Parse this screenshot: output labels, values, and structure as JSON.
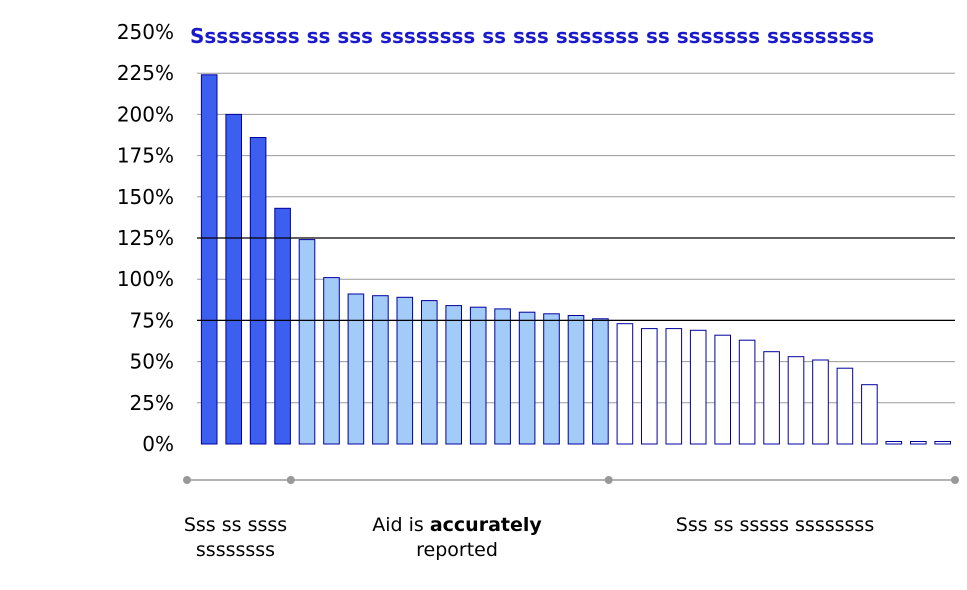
{
  "chart_data": {
    "type": "bar",
    "title": "Sssssssss ss sss ssssssss ss sss sssssss ss sssssss sssssssss",
    "xlabel": "",
    "ylabel": "",
    "ylim": [
      0,
      250
    ],
    "y_tick_labels": [
      "0%",
      "25%",
      "50%",
      "75%",
      "100%",
      "125%",
      "150%",
      "175%",
      "200%",
      "225%",
      "250%"
    ],
    "y_tick_values": [
      0,
      25,
      50,
      75,
      100,
      125,
      150,
      175,
      200,
      225,
      250
    ],
    "reference_lines": [
      75,
      125
    ],
    "grid": true,
    "values": [
      224,
      200,
      186,
      143,
      124,
      101,
      91,
      90,
      89,
      87,
      84,
      83,
      82,
      80,
      79,
      78,
      76,
      73,
      70,
      70,
      69,
      66,
      63,
      56,
      53,
      51,
      46,
      36,
      1.5,
      1.5,
      1.5
    ],
    "groups": [
      {
        "name": "over",
        "start": 0,
        "end": 3,
        "color": "#3c5ff0"
      },
      {
        "name": "accurate",
        "start": 4,
        "end": 16,
        "color": "#a3cbf7"
      },
      {
        "name": "under",
        "start": 17,
        "end": 30,
        "color": "#ffffff"
      }
    ],
    "colors": {
      "outline": "#0000a0",
      "gridline": "#9a9a9a",
      "refline": "#000000",
      "axis_marker": "#999999"
    }
  },
  "captions": {
    "left": {
      "line1": "Sss ss ssss",
      "line2": "ssssssss"
    },
    "middle": {
      "line1_pre": "Aid is ",
      "line1_bold": "accurately",
      "line2": "reported"
    },
    "right": {
      "line1": "Sss ss sssss ssssssss"
    }
  }
}
